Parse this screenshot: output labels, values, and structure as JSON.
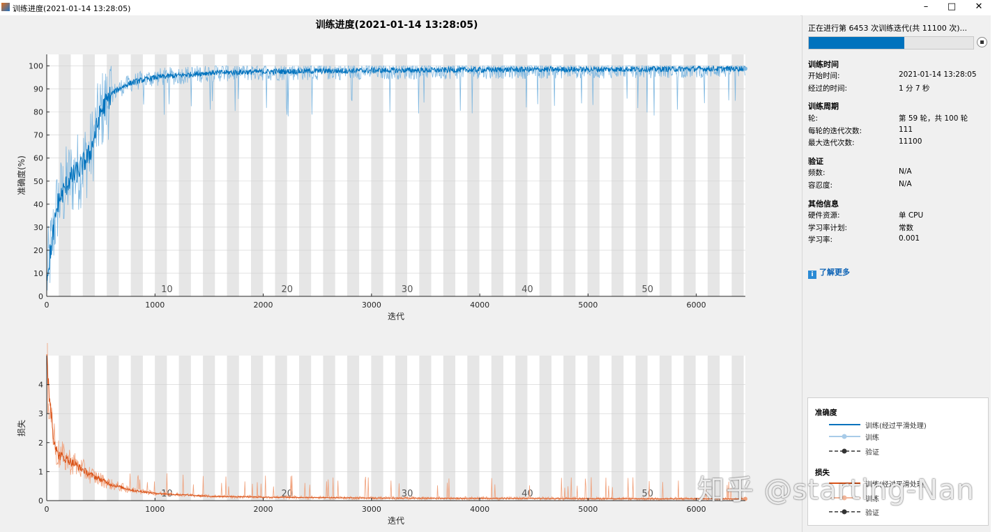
{
  "window": {
    "title": "训练进度(2021-01-14 13:28:05)"
  },
  "plot_title": "训练进度(2021-01-14 13:28:05)",
  "status": {
    "text": "正在进行第 6453 次训练迭代(共 11100 次)...",
    "progress": 0.581
  },
  "sections": {
    "time": {
      "title": "训练时间",
      "rows": [
        {
          "label": "开始时间:",
          "value": "2021-01-14 13:28:05"
        },
        {
          "label": "经过的时间:",
          "value": "1 分 7 秒"
        }
      ]
    },
    "cycle": {
      "title": "训练周期",
      "rows": [
        {
          "label": "轮:",
          "value": "第 59 轮，共 100 轮"
        },
        {
          "label": "每轮的迭代次数:",
          "value": "111"
        },
        {
          "label": "最大迭代次数:",
          "value": "11100"
        }
      ]
    },
    "validation": {
      "title": "验证",
      "rows": [
        {
          "label": "频数:",
          "value": "N/A"
        },
        {
          "label": "容忍度:",
          "value": "N/A"
        }
      ]
    },
    "other": {
      "title": "其他信息",
      "rows": [
        {
          "label": "硬件资源:",
          "value": "单 CPU"
        },
        {
          "label": "学习率计划:",
          "value": "常数"
        },
        {
          "label": "学习率:",
          "value": "0.001"
        }
      ]
    }
  },
  "learn_more": "了解更多",
  "legend": {
    "accuracy": {
      "title": "准确度",
      "items": [
        "训练(经过平滑处理)",
        "训练",
        "验证"
      ]
    },
    "loss": {
      "title": "损失",
      "items": [
        "训练(经过平滑处理)",
        "训练",
        "验证"
      ]
    }
  },
  "watermark": "知乎 @starting-Nan",
  "colors": {
    "accuracy": "#0072bd",
    "accuracy_raw": "#7eb7e0",
    "loss": "#d95319",
    "loss_raw": "#f0a07a",
    "progress": "#0072bd"
  },
  "chart_data": [
    {
      "type": "line",
      "ylabel": "准确度(%)",
      "xlabel": "迭代",
      "xlim": [
        0,
        6453
      ],
      "ylim": [
        0,
        105
      ],
      "xticks": [
        0,
        1000,
        2000,
        3000,
        4000,
        5000,
        6000
      ],
      "yticks": [
        0,
        10,
        20,
        30,
        40,
        50,
        60,
        70,
        80,
        90,
        100
      ],
      "epoch_labels": [
        "10",
        "20",
        "30",
        "40",
        "50"
      ],
      "iterations_per_epoch": 111,
      "series": [
        {
          "name": "训练(经过平滑处理)",
          "x": [
            0,
            100,
            200,
            300,
            400,
            500,
            600,
            700,
            800,
            1000,
            1500,
            2000,
            3000,
            4000,
            5000,
            6000,
            6453
          ],
          "y": [
            8,
            40,
            50,
            55,
            62,
            80,
            88,
            91,
            93,
            95,
            97,
            97.5,
            98,
            98.3,
            98.5,
            98.7,
            98.8
          ]
        }
      ]
    },
    {
      "type": "line",
      "ylabel": "损失",
      "xlabel": "迭代",
      "xlim": [
        0,
        6453
      ],
      "ylim": [
        0,
        5
      ],
      "xticks": [
        0,
        1000,
        2000,
        3000,
        4000,
        5000,
        6000
      ],
      "yticks": [
        0,
        1,
        2,
        3,
        4
      ],
      "epoch_labels": [
        "10",
        "20",
        "30",
        "40",
        "50"
      ],
      "iterations_per_epoch": 111,
      "series": [
        {
          "name": "训练(经过平滑处理)",
          "x": [
            0,
            30,
            60,
            100,
            200,
            400,
            600,
            800,
            1000,
            1500,
            2000,
            3000,
            4000,
            5000,
            6000,
            6453
          ],
          "y": [
            4.7,
            3.5,
            2.3,
            1.6,
            1.4,
            0.9,
            0.55,
            0.35,
            0.25,
            0.15,
            0.12,
            0.09,
            0.08,
            0.07,
            0.06,
            0.06
          ]
        }
      ]
    }
  ]
}
